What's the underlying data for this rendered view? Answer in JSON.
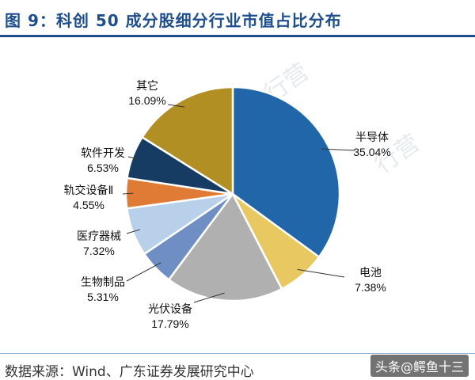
{
  "header": {
    "title": "图 9：科创 50 成分股细分行业市值占比分布"
  },
  "footer": {
    "source": "数据来源：Wind、广东证券发展研究中心",
    "watermark": "头条@鳄鱼十三"
  },
  "watermark_text": "行营",
  "colors": {
    "title": "#1f4e8c",
    "leader": "#333333"
  },
  "chart_data": {
    "type": "pie",
    "title": "",
    "start_angle_deg": 0,
    "direction": "clockwise",
    "slices": [
      {
        "label": "半导体",
        "value": 35.04,
        "value_label": "35.04%",
        "color": "#2066a8"
      },
      {
        "label": "电池",
        "value": 7.38,
        "value_label": "7.38%",
        "color": "#e8c860"
      },
      {
        "label": "光伏设备",
        "value": 17.79,
        "value_label": "17.79%",
        "color": "#b0b0b0"
      },
      {
        "label": "生物制品",
        "value": 5.31,
        "value_label": "5.31%",
        "color": "#6f8fc4"
      },
      {
        "label": "医疗器械",
        "value": 7.32,
        "value_label": "7.32%",
        "color": "#b8d0ea"
      },
      {
        "label": "轨交设备Ⅱ",
        "value": 4.55,
        "value_label": "4.55%",
        "color": "#e07b35"
      },
      {
        "label": "软件开发",
        "value": 6.53,
        "value_label": "6.53%",
        "color": "#173c63"
      },
      {
        "label": "其它",
        "value": 16.09,
        "value_label": "16.09%",
        "color": "#b28f22"
      }
    ]
  }
}
